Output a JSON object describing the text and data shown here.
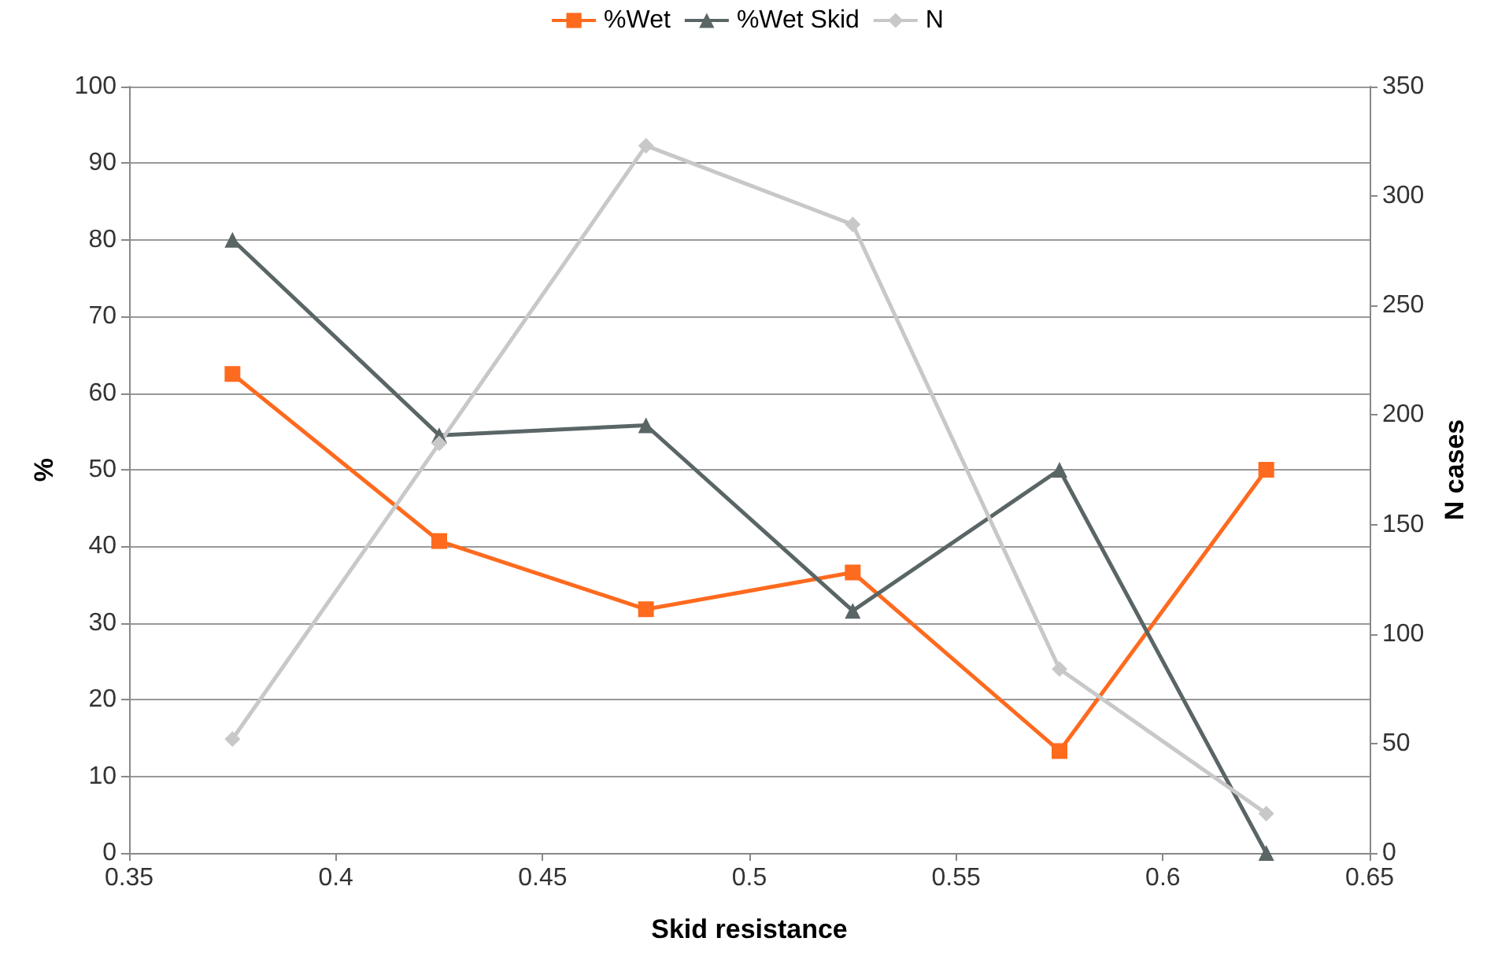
{
  "chart_data": {
    "type": "line",
    "xlabel": "Skid resistance",
    "ylabel": "%",
    "y2label": "N cases",
    "x": [
      0.375,
      0.425,
      0.475,
      0.525,
      0.575,
      0.625
    ],
    "series": [
      {
        "name": "%Wet",
        "color": "#fe6a1e",
        "marker": "square",
        "values": [
          62.5,
          40.7,
          31.8,
          36.6,
          13.3,
          50
        ]
      },
      {
        "name": "%Wet Skid",
        "color": "#5a6566",
        "marker": "triangle",
        "values": [
          80,
          54.5,
          55.8,
          31.6,
          50,
          0
        ]
      },
      {
        "name": "N",
        "color": "#c8c8c8",
        "marker": "diamond",
        "axis": "y2",
        "values": [
          52,
          187,
          323,
          287,
          84,
          18
        ]
      }
    ],
    "xlim": [
      0.35,
      0.65
    ],
    "xticks": [
      0.35,
      0.4,
      0.45,
      0.5,
      0.55,
      0.6,
      0.65
    ],
    "ylim": [
      0,
      100
    ],
    "yticks": [
      0,
      10,
      20,
      30,
      40,
      50,
      60,
      70,
      80,
      90,
      100
    ],
    "y2lim": [
      0,
      350
    ],
    "y2ticks": [
      0,
      50,
      100,
      150,
      200,
      250,
      300,
      350
    ],
    "grid": "y",
    "legend": "top",
    "line_style": "solid"
  }
}
